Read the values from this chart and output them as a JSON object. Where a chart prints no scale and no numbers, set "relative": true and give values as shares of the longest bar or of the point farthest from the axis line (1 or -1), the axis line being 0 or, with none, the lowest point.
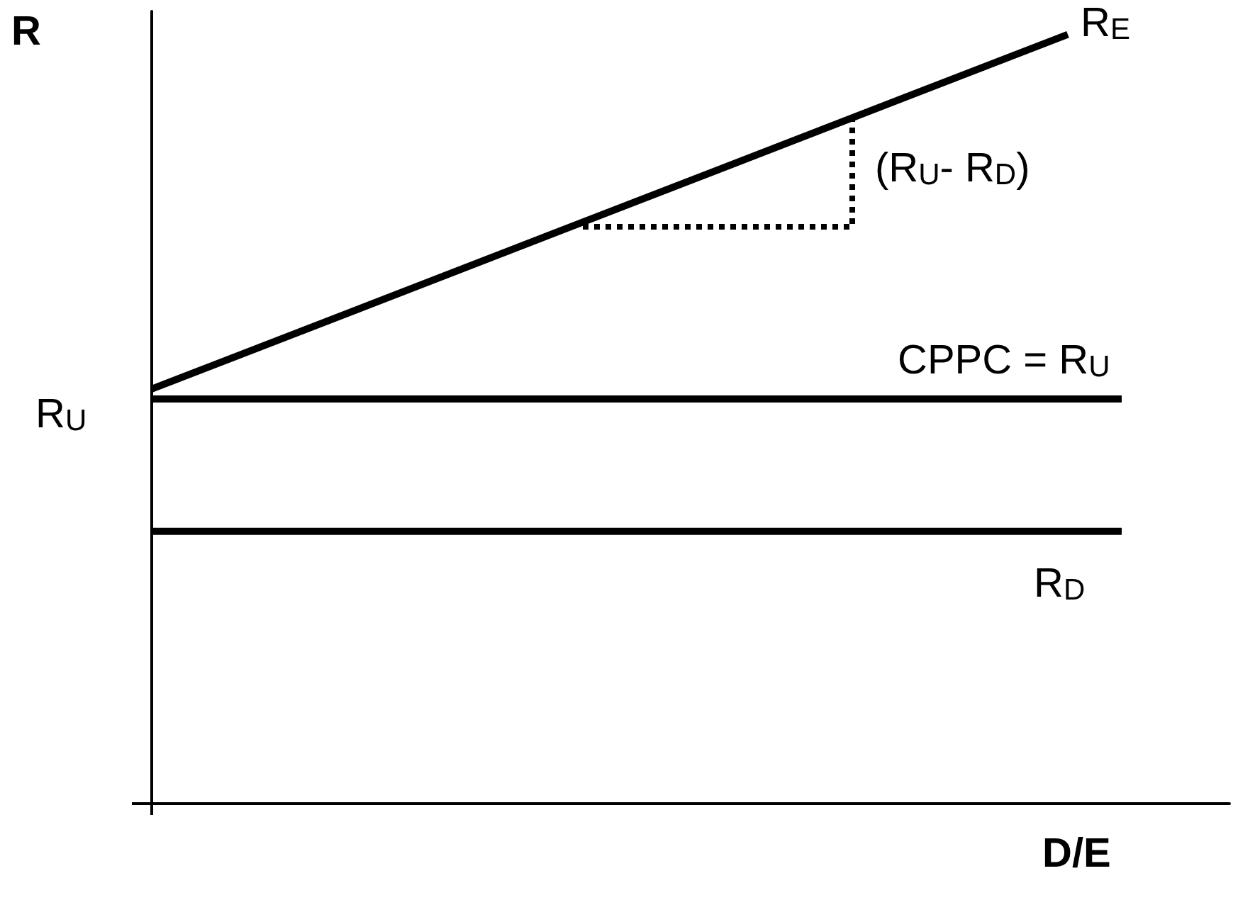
{
  "chart_data": {
    "type": "line",
    "relative": true,
    "xlabel": "D/E",
    "ylabel": "R",
    "marker": "none",
    "line_style": "solid",
    "grid": false,
    "categories": [
      null,
      null,
      null,
      null,
      null,
      null,
      null,
      null,
      null,
      null,
      null,
      null,
      null,
      null,
      null,
      null,
      null,
      null,
      null,
      null,
      null
    ],
    "series": [
      {
        "name": "R$_{E}$",
        "color": "#000000",
        "values": [
          0.539,
          null,
          null,
          null,
          null,
          null,
          null,
          null,
          null,
          null,
          null,
          null,
          null,
          null,
          null,
          null,
          null,
          1,
          null,
          null,
          null
        ]
      },
      {
        "name": "CPPC = R$_{U}$",
        "color": "#000000",
        "values": [
          0.526,
          null,
          null,
          null,
          null,
          null,
          null,
          null,
          null,
          null,
          null,
          null,
          null,
          null,
          null,
          null,
          null,
          null,
          0.526,
          null,
          null
        ]
      },
      {
        "name": "R$_{D}$",
        "color": "#000000",
        "values": [
          0.354,
          null,
          null,
          null,
          null,
          null,
          null,
          null,
          null,
          null,
          null,
          null,
          null,
          null,
          null,
          null,
          null,
          null,
          0.354,
          null,
          null
        ]
      },
      {
        "type": "step",
        "color": "#000000",
        "line_style": "dotted",
        "values": [
          null,
          null,
          null,
          null,
          null,
          null,
          null,
          null,
          0.75,
          null,
          null,
          null,
          null,
          0.89,
          null,
          null,
          null,
          null,
          null,
          null,
          null
        ]
      }
    ],
    "annotations": [
      "R$_{U}$",
      "(R$_{U}$- R$_{D}$)"
    ]
  }
}
